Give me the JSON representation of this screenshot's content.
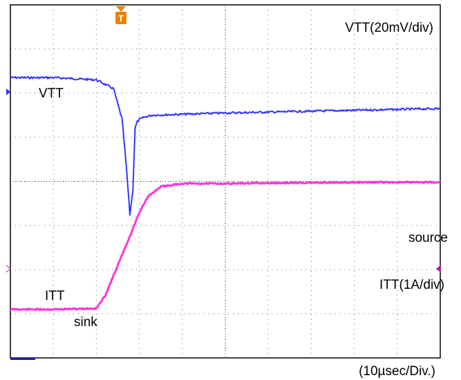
{
  "chart_data": {
    "type": "line",
    "title": "",
    "xlabel": "(10µsec/Div.)",
    "ylabel": "",
    "grid": true,
    "x_unit": "div",
    "xlim": [
      0,
      10
    ],
    "ylim": [
      -4,
      4
    ],
    "annotations": {
      "vtt_scale": "VTT(20mV/div)",
      "vtt_trace": "VTT",
      "itt_trace": "ITT",
      "itt_scale": "ITT(1A/div)",
      "sink": "sink",
      "source": "source",
      "trigger": "T"
    },
    "series": [
      {
        "name": "VTT",
        "color": "#3333ff",
        "x": [
          0,
          1.0,
          2.0,
          2.4,
          2.6,
          2.7,
          2.78,
          2.85,
          2.9,
          2.95,
          3.0,
          3.1,
          3.3,
          4,
          5,
          6,
          7,
          8,
          9,
          10
        ],
        "y": [
          2.35,
          2.35,
          2.3,
          2.1,
          1.4,
          0.3,
          -0.75,
          -0.2,
          1.2,
          1.35,
          1.4,
          1.45,
          1.5,
          1.52,
          1.55,
          1.57,
          1.59,
          1.61,
          1.63,
          1.65
        ]
      },
      {
        "name": "ITT",
        "color": "#ff33dd",
        "x": [
          0,
          1.0,
          2.0,
          2.2,
          2.5,
          2.8,
          3.0,
          3.2,
          3.5,
          4,
          5,
          6,
          7,
          8,
          9,
          10
        ],
        "y": [
          -2.9,
          -2.9,
          -2.88,
          -2.6,
          -1.9,
          -1.2,
          -0.7,
          -0.35,
          -0.12,
          -0.05,
          -0.05,
          -0.04,
          -0.03,
          -0.02,
          -0.02,
          -0.02
        ]
      }
    ]
  }
}
